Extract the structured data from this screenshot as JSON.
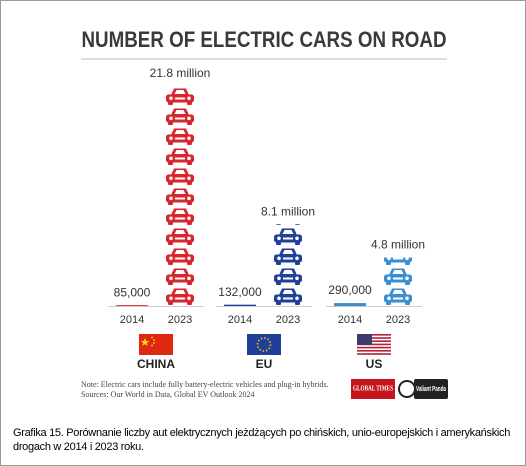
{
  "chart_data": {
    "type": "bar",
    "title": "NUMBER OF ELECTRIC CARS ON ROAD",
    "categories": [
      "CHINA",
      "EU",
      "US"
    ],
    "colors": [
      "#d7262e",
      "#1f3f99",
      "#3a8fd1"
    ],
    "series": [
      {
        "name": "2014",
        "values": [
          85000,
          132000,
          290000
        ],
        "value_labels": [
          "85,000",
          "132,000",
          "290,000"
        ]
      },
      {
        "name": "2023",
        "values": [
          21800000,
          8100000,
          4800000
        ],
        "value_labels": [
          "21.8 million",
          "8.1 million",
          "4.8 million"
        ]
      }
    ],
    "notes": [
      "Note: Electric cars include fully battery-electric vehicles and plug-in hybrids.",
      "Sources: Our World in Data, Global EV Outlook 2024"
    ],
    "logos": [
      "GLOBAL TIMES",
      "Valiant Panda"
    ]
  },
  "caption": "Grafika 15. Porównanie liczby aut elektrycznych jeżdżących po chińskich, unio-europejskich i amerykańskich drogach w 2014 i 2023 roku."
}
